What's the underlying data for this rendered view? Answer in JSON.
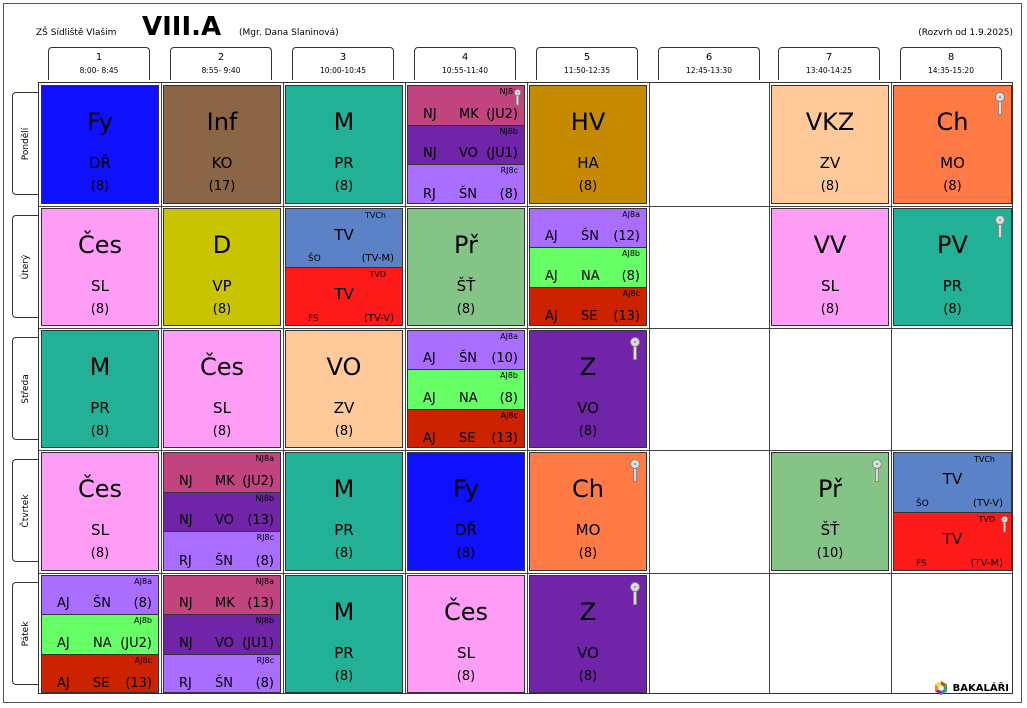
{
  "header": {
    "school": "ZŠ Sídliště Vlašim",
    "class": "VIII.A",
    "teacher": "(Mgr. Dana Slaninová)",
    "valid_from": "(Rozvrh od 1.9.2025)"
  },
  "periods": [
    {
      "n": "1",
      "time": "8:00- 8:45"
    },
    {
      "n": "2",
      "time": "8:55- 9:40"
    },
    {
      "n": "3",
      "time": "10:00-10:45"
    },
    {
      "n": "4",
      "time": "10:55-11:40"
    },
    {
      "n": "5",
      "time": "11:50-12:35"
    },
    {
      "n": "6",
      "time": "12:45-13:30"
    },
    {
      "n": "7",
      "time": "13:40-14:25"
    },
    {
      "n": "8",
      "time": "14:35-15:20"
    }
  ],
  "days": [
    "Pondělí",
    "Úterý",
    "Středa",
    "Čtvrtek",
    "Pátek"
  ],
  "lessons": [
    {
      "day": 0,
      "period": 0,
      "type": "single",
      "subject": "Fy",
      "teacher": "DŘ",
      "room": "(8)",
      "color": "#0f10ff",
      "textColor": "#000"
    },
    {
      "day": 0,
      "period": 1,
      "type": "single",
      "subject": "Inf",
      "teacher": "KO",
      "room": "(17)",
      "color": "#8b6646"
    },
    {
      "day": 0,
      "period": 2,
      "type": "single",
      "subject": "M",
      "teacher": "PR",
      "room": "(8)",
      "color": "#22b096"
    },
    {
      "day": 0,
      "period": 3,
      "type": "split",
      "parts": [
        {
          "group": "NJ8a",
          "a": "NJ",
          "b": "MK",
          "c": "(JU2)",
          "color": "#c2447f",
          "key": true
        },
        {
          "group": "NJ8b",
          "a": "NJ",
          "b": "VO",
          "c": "(JU1)",
          "color": "#7024a8"
        },
        {
          "group": "RJ8c",
          "a": "RJ",
          "b": "ŠN",
          "c": "(8)",
          "color": "#a96eff"
        }
      ]
    },
    {
      "day": 0,
      "period": 4,
      "type": "single",
      "subject": "HV",
      "teacher": "HA",
      "room": "(8)",
      "color": "#c68a00"
    },
    {
      "day": 0,
      "period": 6,
      "type": "single",
      "subject": "VKZ",
      "teacher": "ZV",
      "room": "(8)",
      "color": "#ffc99a"
    },
    {
      "day": 0,
      "period": 7,
      "type": "single",
      "subject": "Ch",
      "teacher": "MO",
      "room": "(8)",
      "color": "#ff7a45",
      "key": true
    },
    {
      "day": 1,
      "period": 0,
      "type": "single",
      "subject": "Čes",
      "teacher": "SL",
      "room": "(8)",
      "color": "#ff9cf5"
    },
    {
      "day": 1,
      "period": 1,
      "type": "single",
      "subject": "D",
      "teacher": "VP",
      "room": "(8)",
      "color": "#c8c400"
    },
    {
      "day": 1,
      "period": 2,
      "type": "tv",
      "parts": [
        {
          "group": "TVCh",
          "a": "TV",
          "b": "ŠO",
          "c": "(TV-M)",
          "color": "#5b82c6"
        },
        {
          "group": "TVD",
          "a": "TV",
          "b": "FS",
          "c": "(TV-V)",
          "color": "#ff1a1a"
        }
      ]
    },
    {
      "day": 1,
      "period": 3,
      "type": "single",
      "subject": "Př",
      "teacher": "ŠŤ",
      "room": "(8)",
      "color": "#84c487"
    },
    {
      "day": 1,
      "period": 4,
      "type": "split",
      "parts": [
        {
          "group": "AJ8a",
          "a": "AJ",
          "b": "ŠN",
          "c": "(12)",
          "color": "#a96eff"
        },
        {
          "group": "AJ8b",
          "a": "AJ",
          "b": "NA",
          "c": "(8)",
          "color": "#66ff66"
        },
        {
          "group": "AJ8c",
          "a": "AJ",
          "b": "SE",
          "c": "(13)",
          "color": "#cc2200"
        }
      ]
    },
    {
      "day": 1,
      "period": 6,
      "type": "single",
      "subject": "VV",
      "teacher": "SL",
      "room": "(8)",
      "color": "#ff9cf5"
    },
    {
      "day": 1,
      "period": 7,
      "type": "single",
      "subject": "PV",
      "teacher": "PR",
      "room": "(8)",
      "color": "#22b096",
      "key": true
    },
    {
      "day": 2,
      "period": 0,
      "type": "single",
      "subject": "M",
      "teacher": "PR",
      "room": "(8)",
      "color": "#22b096"
    },
    {
      "day": 2,
      "period": 1,
      "type": "single",
      "subject": "Čes",
      "teacher": "SL",
      "room": "(8)",
      "color": "#ff9cf5"
    },
    {
      "day": 2,
      "period": 2,
      "type": "single",
      "subject": "VO",
      "teacher": "ZV",
      "room": "(8)",
      "color": "#ffc99a"
    },
    {
      "day": 2,
      "period": 3,
      "type": "split",
      "parts": [
        {
          "group": "AJ8a",
          "a": "AJ",
          "b": "ŠN",
          "c": "(10)",
          "color": "#a96eff"
        },
        {
          "group": "AJ8b",
          "a": "AJ",
          "b": "NA",
          "c": "(8)",
          "color": "#66ff66"
        },
        {
          "group": "AJ8c",
          "a": "AJ",
          "b": "SE",
          "c": "(13)",
          "color": "#cc2200"
        }
      ]
    },
    {
      "day": 2,
      "period": 4,
      "type": "single",
      "subject": "Z",
      "teacher": "VO",
      "room": "(8)",
      "color": "#7024a8",
      "key": true
    },
    {
      "day": 3,
      "period": 0,
      "type": "single",
      "subject": "Čes",
      "teacher": "SL",
      "room": "(8)",
      "color": "#ff9cf5"
    },
    {
      "day": 3,
      "period": 1,
      "type": "split",
      "parts": [
        {
          "group": "NJ8a",
          "a": "NJ",
          "b": "MK",
          "c": "(JU2)",
          "color": "#c2447f"
        },
        {
          "group": "NJ8b",
          "a": "NJ",
          "b": "VO",
          "c": "(13)",
          "color": "#7024a8"
        },
        {
          "group": "RJ8c",
          "a": "RJ",
          "b": "ŠN",
          "c": "(8)",
          "color": "#a96eff"
        }
      ]
    },
    {
      "day": 3,
      "period": 2,
      "type": "single",
      "subject": "M",
      "teacher": "PR",
      "room": "(8)",
      "color": "#22b096"
    },
    {
      "day": 3,
      "period": 3,
      "type": "single",
      "subject": "Fy",
      "teacher": "DŘ",
      "room": "(8)",
      "color": "#0f10ff"
    },
    {
      "day": 3,
      "period": 4,
      "type": "single",
      "subject": "Ch",
      "teacher": "MO",
      "room": "(8)",
      "color": "#ff7a45",
      "key": true
    },
    {
      "day": 3,
      "period": 6,
      "type": "single",
      "subject": "Př",
      "teacher": "ŠŤ",
      "room": "(10)",
      "color": "#84c487",
      "key": true
    },
    {
      "day": 3,
      "period": 7,
      "type": "tv",
      "parts": [
        {
          "group": "TVCh",
          "a": "TV",
          "b": "ŠO",
          "c": "(TV-V)",
          "color": "#5b82c6"
        },
        {
          "group": "TVD",
          "a": "TV",
          "b": "FS",
          "c": "(TV-M)",
          "color": "#ff1a1a",
          "key": true
        }
      ]
    },
    {
      "day": 4,
      "period": 0,
      "type": "split",
      "parts": [
        {
          "group": "AJ8a",
          "a": "AJ",
          "b": "ŠN",
          "c": "(8)",
          "color": "#a96eff"
        },
        {
          "group": "AJ8b",
          "a": "AJ",
          "b": "NA",
          "c": "(JU2)",
          "color": "#66ff66"
        },
        {
          "group": "AJ8c",
          "a": "AJ",
          "b": "SE",
          "c": "(13)",
          "color": "#cc2200"
        }
      ]
    },
    {
      "day": 4,
      "period": 1,
      "type": "split",
      "parts": [
        {
          "group": "NJ8a",
          "a": "NJ",
          "b": "MK",
          "c": "(13)",
          "color": "#c2447f"
        },
        {
          "group": "NJ8b",
          "a": "NJ",
          "b": "VO",
          "c": "(JU1)",
          "color": "#7024a8"
        },
        {
          "group": "RJ8c",
          "a": "RJ",
          "b": "ŠN",
          "c": "(8)",
          "color": "#a96eff"
        }
      ]
    },
    {
      "day": 4,
      "period": 2,
      "type": "single",
      "subject": "M",
      "teacher": "PR",
      "room": "(8)",
      "color": "#22b096"
    },
    {
      "day": 4,
      "period": 3,
      "type": "single",
      "subject": "Čes",
      "teacher": "SL",
      "room": "(8)",
      "color": "#ff9cf5"
    },
    {
      "day": 4,
      "period": 4,
      "type": "single",
      "subject": "Z",
      "teacher": "VO",
      "room": "(8)",
      "color": "#7024a8",
      "key": true
    }
  ],
  "branding": {
    "name": "BAKALÁŘI",
    "icon": "bakalari-logo-icon"
  }
}
